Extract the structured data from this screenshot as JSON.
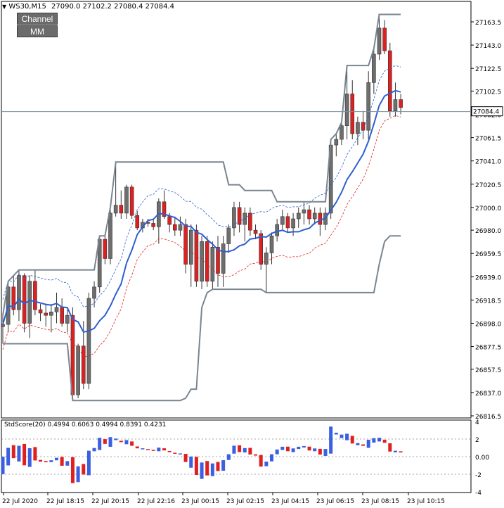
{
  "header": {
    "symbol_label": "WS30,M15",
    "ohlc_label": "27090.0 27102.2 27080.4 27084.4"
  },
  "buttons": {
    "channel_label": "Channel",
    "mm_label": "MM"
  },
  "colors": {
    "up_candle": "#6e6e6e",
    "down_candle": "#e02020",
    "ma_line": "#2f5fd0",
    "upper_band": "#2f5fd0",
    "lower_band": "#e02020",
    "channel": "#7a8590",
    "price_line": "#7a8fa0",
    "std_bar_up": "#3a5fe0",
    "std_bar_down": "#e02020"
  },
  "price_marker": "27084.4",
  "indicator": {
    "label": "StdScore(20) 0.4994 0.6063 0.4994 0.8391 0.4231",
    "y_ticks": [
      "4",
      "2",
      "0.00",
      "-2",
      "-4"
    ]
  },
  "chart_data": {
    "type": "candlestick",
    "y_ticks": [
      "27163.5",
      "27143.0",
      "27122.5",
      "27102.5",
      "27082.0",
      "27061.5",
      "27041.0",
      "27020.5",
      "27000.0",
      "26980.0",
      "26959.5",
      "26939.0",
      "26918.5",
      "26898.0",
      "26877.5",
      "26857.5",
      "26837.0",
      "26816.5"
    ],
    "x_ticks": [
      "22 Jul 2020",
      "22 Jul 18:15",
      "22 Jul 20:15",
      "22 Jul 22:16",
      "23 Jul 00:15",
      "23 Jul 02:15",
      "23 Jul 04:15",
      "23 Jul 06:15",
      "23 Jul 08:15",
      "23 Jul 10:15"
    ],
    "ylim": [
      26810,
      27175
    ],
    "candles": [
      [
        26895,
        26905,
        26880,
        26897
      ],
      [
        26897,
        26935,
        26890,
        26930
      ],
      [
        26930,
        26940,
        26905,
        26910
      ],
      [
        26910,
        26945,
        26900,
        26940
      ],
      [
        26940,
        26942,
        26890,
        26898
      ],
      [
        26898,
        26940,
        26885,
        26935
      ],
      [
        26935,
        26945,
        26905,
        26910
      ],
      [
        26910,
        26915,
        26900,
        26907
      ],
      [
        26907,
        26915,
        26895,
        26905
      ],
      [
        26905,
        26915,
        26890,
        26908
      ],
      [
        26908,
        26925,
        26898,
        26912
      ],
      [
        26912,
        26920,
        26895,
        26898
      ],
      [
        26898,
        26910,
        26890,
        26905
      ],
      [
        26905,
        26912,
        26830,
        26835
      ],
      [
        26835,
        26880,
        26832,
        26878
      ],
      [
        26878,
        26900,
        26840,
        26845
      ],
      [
        26845,
        26925,
        26840,
        26920
      ],
      [
        26920,
        26935,
        26912,
        26930
      ],
      [
        26930,
        26975,
        26925,
        26972
      ],
      [
        26972,
        26975,
        26950,
        26955
      ],
      [
        26955,
        27000,
        26950,
        26995
      ],
      [
        26995,
        27040,
        26992,
        27002
      ],
      [
        27002,
        27015,
        26990,
        26995
      ],
      [
        26995,
        27020,
        26990,
        27018
      ],
      [
        27018,
        27020,
        26990,
        26993
      ],
      [
        26993,
        26997,
        26980,
        26982
      ],
      [
        26982,
        26990,
        26978,
        26987
      ],
      [
        26987,
        26990,
        26983,
        26986
      ],
      [
        26986,
        26990,
        26980,
        26983
      ],
      [
        26983,
        27008,
        26968,
        27005
      ],
      [
        27005,
        27015,
        26990,
        26992
      ],
      [
        26992,
        26995,
        26978,
        26985
      ],
      [
        26985,
        26992,
        26975,
        26980
      ],
      [
        26980,
        26992,
        26975,
        26985
      ],
      [
        26985,
        26990,
        26942,
        26950
      ],
      [
        26950,
        26985,
        26930,
        26980
      ],
      [
        26980,
        26985,
        26930,
        26935
      ],
      [
        26935,
        26975,
        26928,
        26970
      ],
      [
        26970,
        26975,
        26930,
        26935
      ],
      [
        26935,
        26970,
        26928,
        26965
      ],
      [
        26965,
        26975,
        26930,
        26942
      ],
      [
        26942,
        26975,
        26930,
        26968
      ],
      [
        26968,
        26985,
        26960,
        26982
      ],
      [
        26982,
        27005,
        26975,
        27000
      ],
      [
        27000,
        27005,
        26978,
        26985
      ],
      [
        26985,
        27000,
        26970,
        26995
      ],
      [
        26995,
        27000,
        26975,
        26980
      ],
      [
        26980,
        26985,
        26972,
        26977
      ],
      [
        26977,
        26980,
        26945,
        26950
      ],
      [
        26950,
        26965,
        26925,
        26960
      ],
      [
        26960,
        26978,
        26950,
        26975
      ],
      [
        26975,
        26990,
        26970,
        26985
      ],
      [
        26985,
        26998,
        26980,
        26992
      ],
      [
        26992,
        26995,
        26978,
        26982
      ],
      [
        26982,
        26995,
        26975,
        26990
      ],
      [
        26990,
        27000,
        26982,
        26995
      ],
      [
        26995,
        27005,
        26985,
        26998
      ],
      [
        26998,
        27002,
        26985,
        26990
      ],
      [
        26990,
        27000,
        26985,
        26995
      ],
      [
        26995,
        27000,
        26975,
        26985
      ],
      [
        26985,
        27000,
        26980,
        26995
      ],
      [
        26995,
        27060,
        26990,
        27055
      ],
      [
        27055,
        27065,
        27045,
        27060
      ],
      [
        27060,
        27075,
        27055,
        27072
      ],
      [
        27072,
        27125,
        27060,
        27100
      ],
      [
        27100,
        27112,
        27060,
        27065
      ],
      [
        27065,
        27080,
        27055,
        27075
      ],
      [
        27075,
        27085,
        27060,
        27068
      ],
      [
        27068,
        27120,
        27060,
        27110
      ],
      [
        27110,
        27140,
        27100,
        27135
      ],
      [
        27135,
        27170,
        27130,
        27158
      ],
      [
        27158,
        27165,
        27135,
        27138
      ],
      [
        27138,
        27145,
        27080,
        27085
      ],
      [
        27085,
        27110,
        27080,
        27095
      ],
      [
        27095,
        27100,
        27082,
        27088
      ]
    ]
  }
}
